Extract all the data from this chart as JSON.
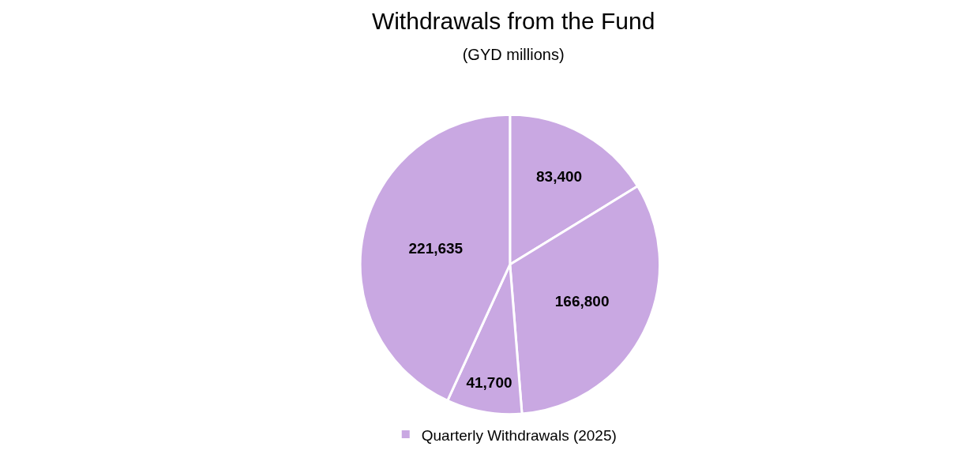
{
  "chart_data": {
    "type": "pie",
    "title": "Withdrawals from the Fund",
    "subtitle": "(GYD millions)",
    "categories": [
      null,
      null,
      null,
      null
    ],
    "series": [
      {
        "name": "Quarterly Withdrawals (2025)",
        "color": "#c9a8e2",
        "values": [
          83400,
          166800,
          41700,
          221635
        ],
        "value_labels": [
          "83,400",
          "166,800",
          "41,700",
          "221,635"
        ]
      }
    ],
    "legend": "bottom"
  }
}
